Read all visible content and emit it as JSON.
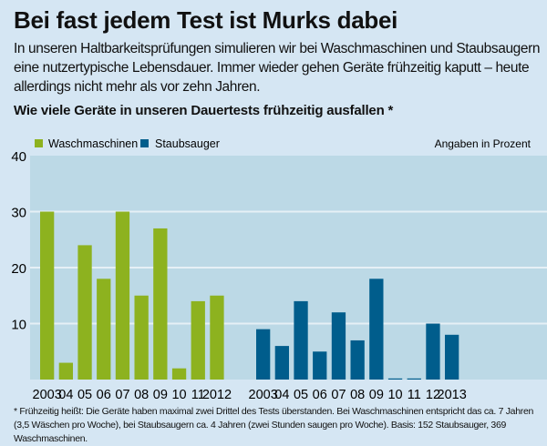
{
  "title": "Bei fast jedem Test ist Murks dabei",
  "subtitle": "In unseren Haltbarkeitsprüfungen simulieren wir bei Waschmaschinen und Staub­saugern eine nutzertypische Lebensdauer. Immer wieder gehen Geräte frühzeitig kaputt – heute allerdings nicht mehr als vor zehn Jahren.",
  "footnote": "* Frühzeitig heißt: Die Geräte haben maximal zwei Drittel des Tests überstanden. Bei Waschmaschinen entspricht das ca. 7 Jahren (3,5 Wäschen pro Woche), bei Staubsaugern ca. 4 Jahren (zwei Stunden saugen pro Woche). Basis: 152 Staubsauger, 369 Waschmaschinen.",
  "chart_data": {
    "type": "bar",
    "title": "Wie viele Geräte in unseren Dauertests frühzeitig ausfallen *",
    "unit_note": "Angaben in Prozent",
    "ylim": [
      0,
      40
    ],
    "yticks": [
      10,
      20,
      30,
      40
    ],
    "grid": true,
    "legend_position": "top-left",
    "series": [
      {
        "name": "Waschmaschinen",
        "color": "#8db21f",
        "categories": [
          "2003",
          "04",
          "05",
          "06",
          "07",
          "08",
          "09",
          "10",
          "11",
          "2012"
        ],
        "values": [
          30,
          3,
          24,
          18,
          30,
          15,
          27,
          2,
          14,
          15
        ]
      },
      {
        "name": "Staubsauger",
        "color": "#005d8c",
        "categories": [
          "2003",
          "04",
          "05",
          "06",
          "07",
          "08",
          "09",
          "10",
          "11",
          "12",
          "2013"
        ],
        "values": [
          9,
          6,
          14,
          5,
          12,
          7,
          18,
          0,
          0,
          10,
          8
        ]
      }
    ],
    "colors": {
      "background": "#d5e6f3",
      "plot_background": "#bcd9e6",
      "gridline": "#e6f0f6"
    }
  }
}
